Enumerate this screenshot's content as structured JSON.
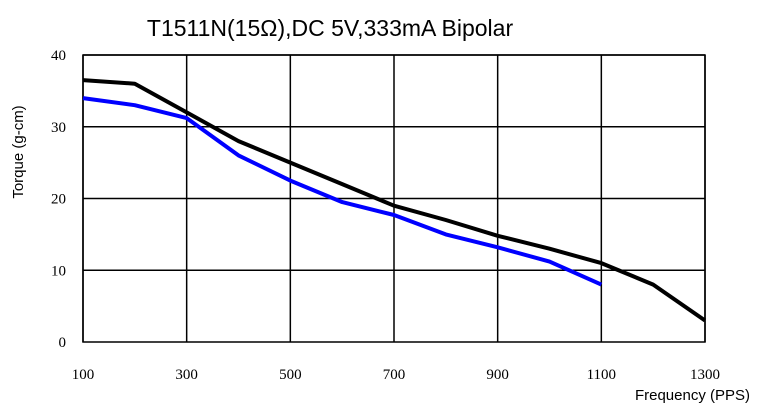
{
  "chart_data": {
    "type": "line",
    "title": "T1511N(15Ω),DC 5V,333mA Bipolar",
    "xlabel": "Frequency (PPS)",
    "ylabel": "Torque (g-cm)",
    "xlim": [
      100,
      1300
    ],
    "ylim": [
      0,
      40
    ],
    "x_ticks": [
      100,
      300,
      500,
      700,
      900,
      1100,
      1300
    ],
    "y_ticks": [
      0,
      10,
      20,
      30,
      40
    ],
    "x_grid": [
      100,
      300,
      500,
      700,
      900,
      1100,
      1300
    ],
    "y_grid": [
      10,
      20,
      30,
      40
    ],
    "grid": true,
    "legend": null,
    "series": [
      {
        "color": "#000000",
        "x": [
          100,
          200,
          300,
          400,
          500,
          600,
          700,
          800,
          900,
          1000,
          1100,
          1200,
          1300
        ],
        "y": [
          36.5,
          36,
          32,
          28,
          25,
          22,
          19,
          17,
          14.8,
          13,
          11,
          8,
          3
        ]
      },
      {
        "color": "#0000ff",
        "x": [
          100,
          200,
          300,
          400,
          500,
          600,
          700,
          800,
          900,
          1000,
          1100
        ],
        "y": [
          34,
          33,
          31.2,
          26,
          22.5,
          19.5,
          17.7,
          15,
          13.2,
          11.2,
          8
        ]
      }
    ]
  }
}
